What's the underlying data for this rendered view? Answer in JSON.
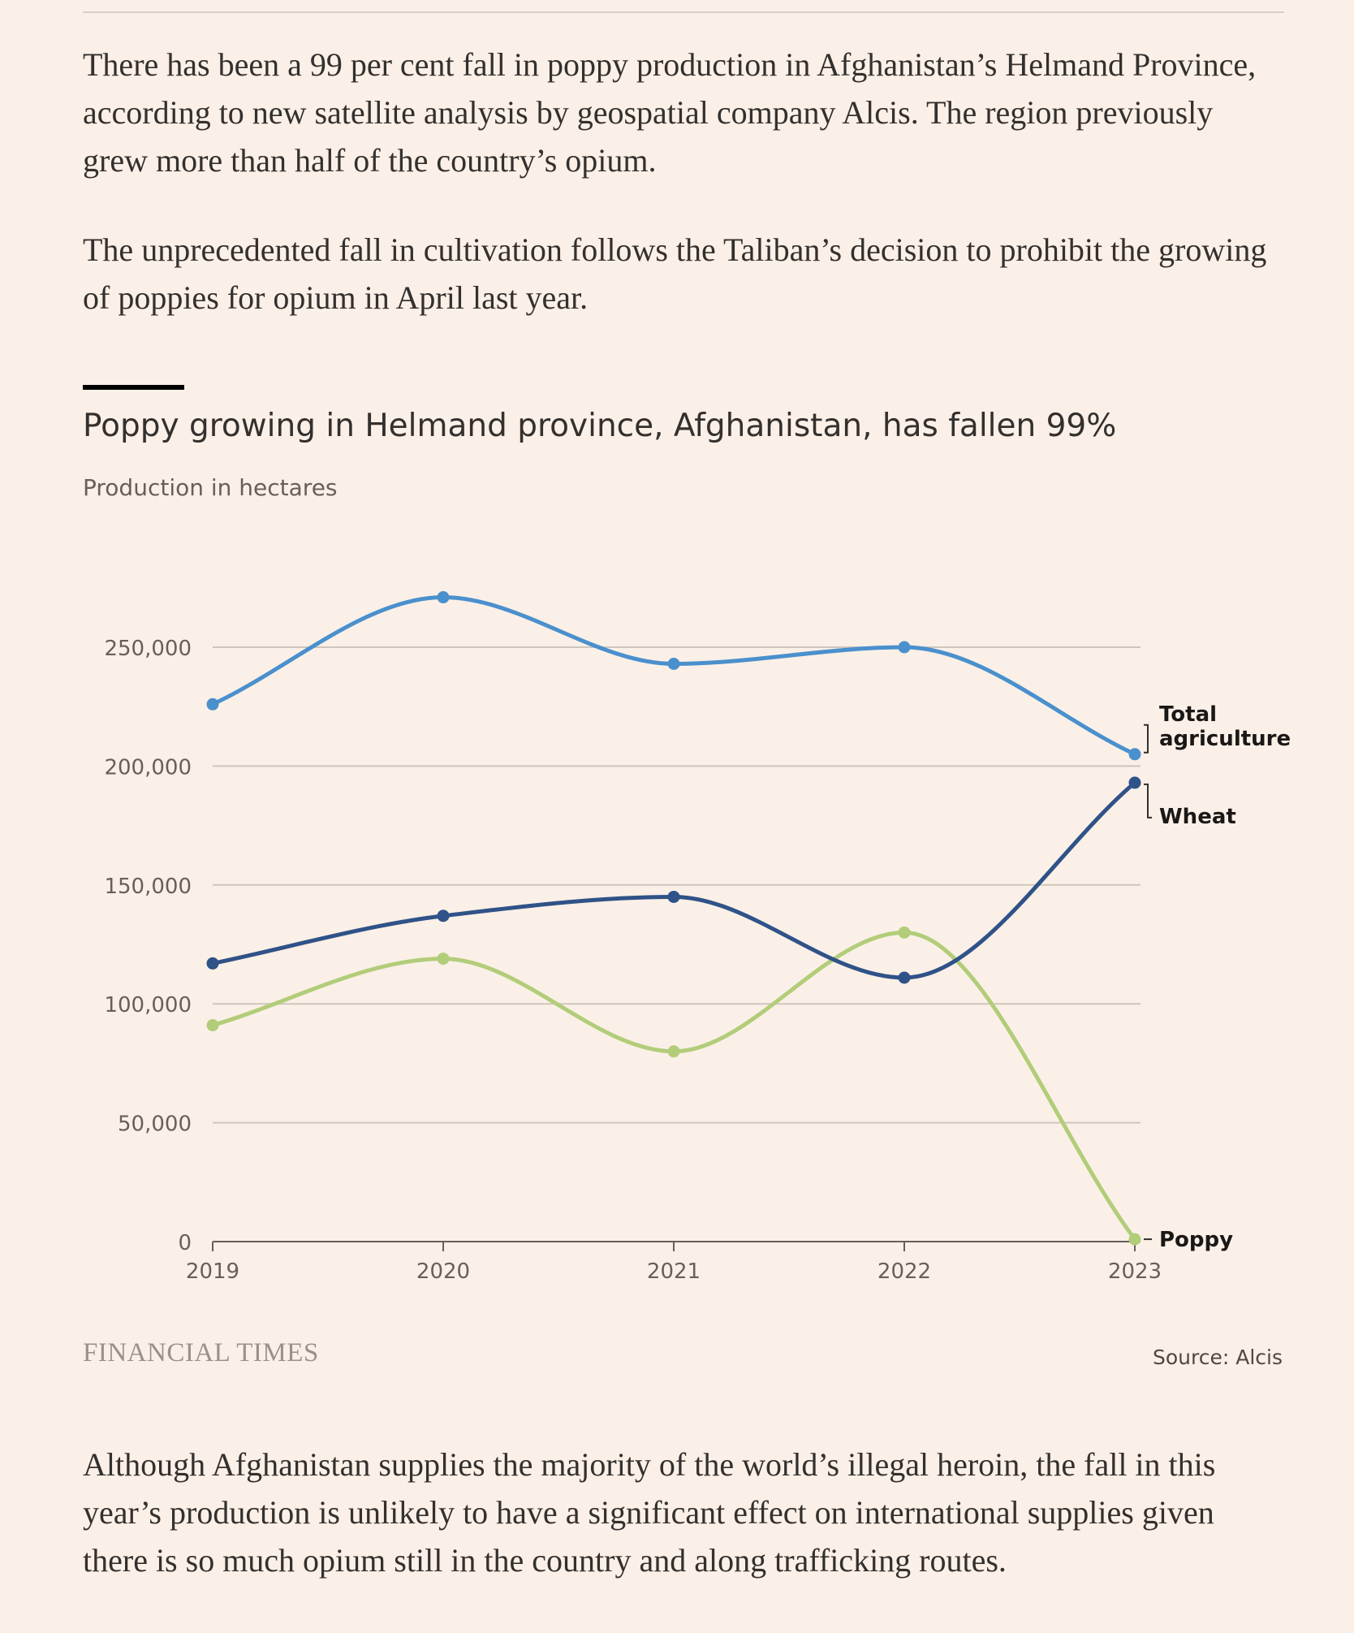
{
  "article": {
    "paragraph_1": "There has been a 99 per cent fall in poppy production in Afghanistan’s Helmand Province, according to new satellite analysis by geospatial company Alcis. The region previously grew more than half of the country’s opium.",
    "paragraph_2": "The unprecedented fall in cultivation follows the Taliban’s decision to prohibit the growing of poppies for opium in April last year.",
    "paragraph_3": "Although Afghanistan supplies the majority of the world’s illegal heroin, the fall in this year’s production is unlikely to have a significant effect on international supplies given there is so much opium still in the country and along trafficking routes."
  },
  "footer": {
    "brand": "FINANCIAL TIMES",
    "source": "Source: Alcis"
  },
  "chart_data": {
    "type": "line",
    "title": "Poppy growing in Helmand province, Afghanistan, has fallen 99%",
    "subtitle": "Production in hectares",
    "xlabel": "",
    "ylabel": "Production in hectares",
    "categories": [
      "2019",
      "2020",
      "2021",
      "2022",
      "2023"
    ],
    "y_ticks": [
      0,
      50000,
      100000,
      150000,
      200000,
      250000
    ],
    "y_tick_labels": [
      "0",
      "50,000",
      "100,000",
      "150,000",
      "200,000",
      "250,000"
    ],
    "ylim": [
      0,
      250000
    ],
    "grid": true,
    "series": [
      {
        "name": "Total agriculture",
        "label_lines": [
          "Total",
          "agriculture"
        ],
        "color": "#4a90cd",
        "values": [
          226000,
          271000,
          243000,
          250000,
          205000
        ]
      },
      {
        "name": "Wheat",
        "label_lines": [
          "Wheat"
        ],
        "color": "#2f5288",
        "values": [
          117000,
          137000,
          145000,
          111000,
          193000
        ]
      },
      {
        "name": "Poppy",
        "label_lines": [
          "Poppy"
        ],
        "color": "#b2cd7a",
        "values": [
          91000,
          119000,
          80000,
          130000,
          1000
        ]
      }
    ]
  }
}
